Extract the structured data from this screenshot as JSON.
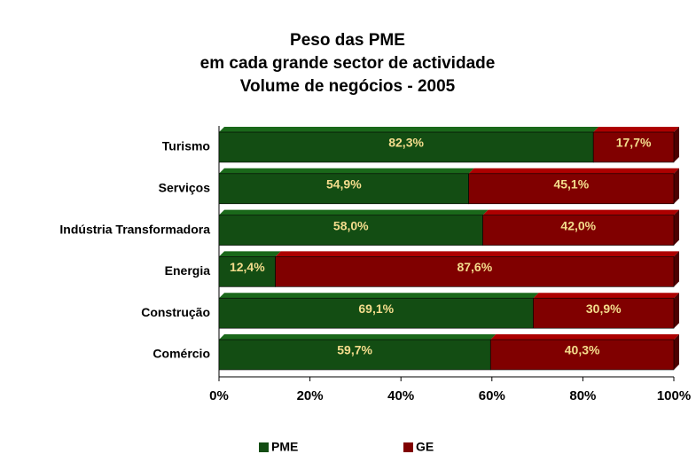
{
  "chart_data": {
    "type": "stacked_barh",
    "title": [
      "Peso das PME",
      "em cada grande sector de actividade",
      "Volume de negócios - 2005"
    ],
    "categories": [
      "Turismo",
      "Serviços",
      "Indústria Transformadora",
      "Energia",
      "Construção",
      "Comércio"
    ],
    "series": [
      {
        "name": "PME",
        "color": "#134d13",
        "values": [
          82.3,
          54.9,
          58.0,
          12.4,
          69.1,
          59.7
        ],
        "value_labels": [
          "82,3%",
          "54,9%",
          "58,0%",
          "12,4%",
          "69,1%",
          "59,7%"
        ]
      },
      {
        "name": "GE",
        "color": "#800000",
        "values": [
          17.7,
          45.1,
          42.0,
          87.6,
          30.9,
          40.3
        ],
        "value_labels": [
          "17,7%",
          "45,1%",
          "42,0%",
          "87,6%",
          "30,9%",
          "40,3%"
        ]
      }
    ],
    "xlim": [
      0,
      100
    ],
    "xticks": [
      {
        "value": 0,
        "label": "0%"
      },
      {
        "value": 20,
        "label": "20%"
      },
      {
        "value": 40,
        "label": "40%"
      },
      {
        "value": 60,
        "label": "60%"
      },
      {
        "value": 80,
        "label": "80%"
      },
      {
        "value": 100,
        "label": "100%"
      }
    ],
    "value_label_color": "#f3dc8c",
    "legend": "bottom"
  }
}
